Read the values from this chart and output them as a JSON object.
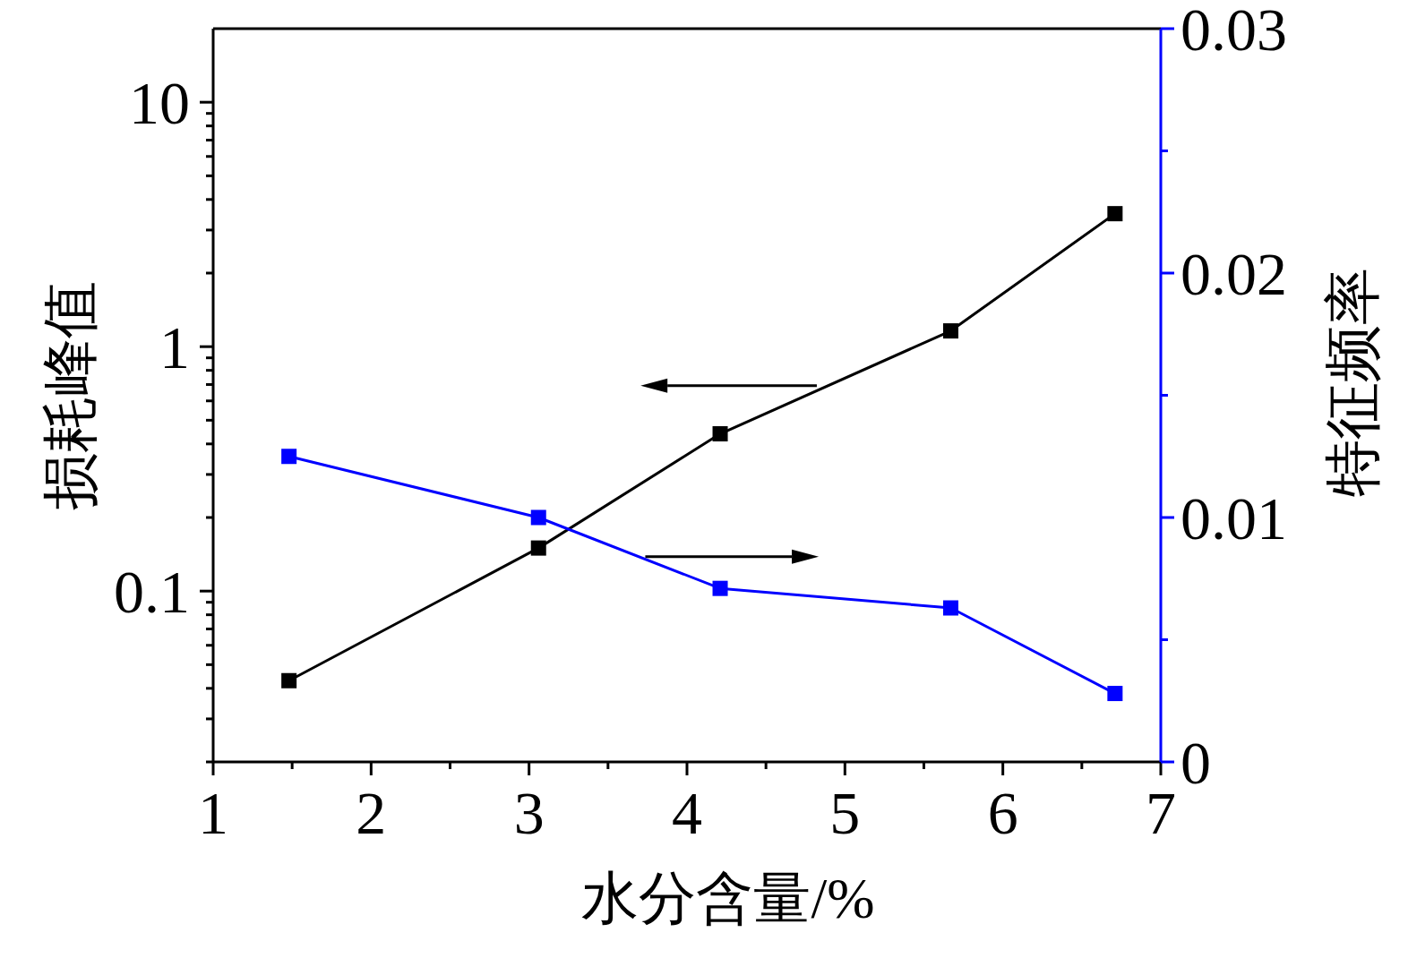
{
  "chart_data": {
    "type": "line",
    "xlabel": "水分含量/%",
    "ylabel": "损耗峰值",
    "y2label": "特征频率",
    "x": [
      1.48,
      3.06,
      4.21,
      5.67,
      6.71
    ],
    "series": [
      {
        "color": "#000000",
        "values": [
          0.043,
          0.15,
          0.44,
          1.16,
          3.5
        ]
      },
      {
        "color": "#0000ff",
        "axis": "y2",
        "values": [
          0.0125,
          0.01,
          0.0071,
          0.0063,
          0.0028
        ]
      }
    ],
    "xlim": [
      1,
      7
    ],
    "xticks": [
      1,
      {
        "value": 1.5,
        "label": null
      },
      2,
      {
        "value": 2.5,
        "label": null
      },
      3,
      {
        "value": 3.5,
        "label": null
      },
      4,
      {
        "value": 4.5,
        "label": null
      },
      5,
      {
        "value": 5.5,
        "label": null
      },
      6,
      {
        "value": 6.5,
        "label": null
      },
      7
    ],
    "ylim": [
      0.02,
      20
    ],
    "yticks": [
      {
        "value": 0.02,
        "label": null
      },
      {
        "value": 0.03,
        "label": null
      },
      {
        "value": 0.04,
        "label": null
      },
      {
        "value": 0.05,
        "label": null
      },
      {
        "value": 0.06,
        "label": null
      },
      {
        "value": 0.07,
        "label": null
      },
      {
        "value": 0.08,
        "label": null
      },
      {
        "value": 0.09,
        "label": null
      },
      0.1,
      {
        "value": 0.2,
        "label": null
      },
      {
        "value": 0.3,
        "label": null
      },
      {
        "value": 0.4,
        "label": null
      },
      {
        "value": 0.5,
        "label": null
      },
      {
        "value": 0.6,
        "label": null
      },
      {
        "value": 0.7,
        "label": null
      },
      {
        "value": 0.8,
        "label": null
      },
      {
        "value": 0.9,
        "label": null
      },
      1,
      {
        "value": 2,
        "label": null
      },
      {
        "value": 3,
        "label": null
      },
      {
        "value": 4,
        "label": null
      },
      {
        "value": 5,
        "label": null
      },
      {
        "value": 6,
        "label": null
      },
      {
        "value": 7,
        "label": null
      },
      {
        "value": 8,
        "label": null
      },
      {
        "value": 9,
        "label": null
      },
      10
    ],
    "y2lim": [
      0,
      0.03
    ],
    "y2ticks": [
      0,
      {
        "value": 0.005,
        "label": null
      },
      0.01,
      {
        "value": 0.015,
        "label": null
      },
      0.02,
      {
        "value": 0.025,
        "label": null
      },
      0.03
    ],
    "log": "y",
    "marker": "square"
  }
}
